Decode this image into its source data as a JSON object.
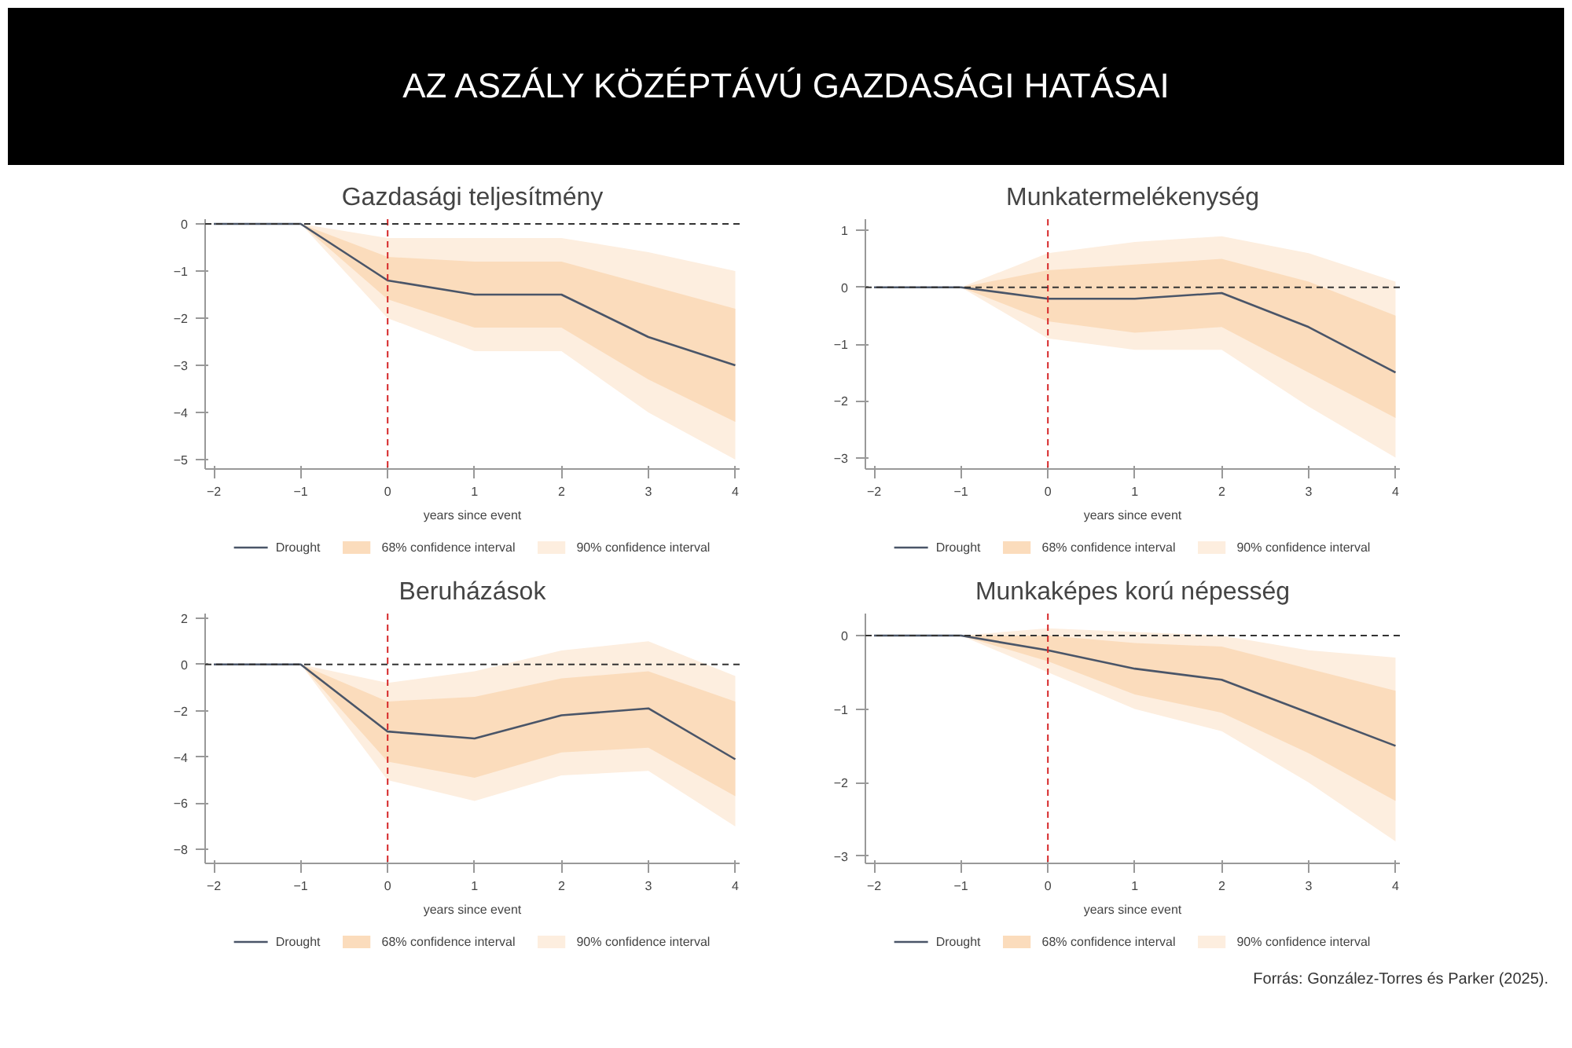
{
  "chart_data": [
    {
      "type": "line",
      "title": "Gazdasági teljesítmény",
      "xlabel": "years since event",
      "annotations": [
        "AZ ASZÁLY KÖZÉPTÁVÚ GAZDASÁGI HATÁSAI"
      ],
      "x": [
        -2,
        -1,
        0,
        1,
        2,
        3,
        4
      ],
      "xlim": [
        -2.1,
        4.05
      ],
      "xticks": [
        -2,
        -1,
        0,
        1,
        2,
        3,
        4
      ],
      "ylim": [
        -5.2,
        0.1
      ],
      "yticks": [
        -5,
        -4,
        -3,
        -2,
        -1,
        0
      ],
      "grid": false,
      "legend": "bottom",
      "series": [
        {
          "name": "Drought",
          "color": "#4a5568",
          "values": [
            0,
            0,
            -1.2,
            -1.5,
            -1.5,
            -2.4,
            -3.0
          ]
        },
        {
          "name": "68% confidence interval",
          "type": "area",
          "color": "#fbdcbc",
          "values": [
            null,
            null,
            null,
            null,
            null,
            null,
            null
          ],
          "lower": [
            0,
            0,
            -1.6,
            -2.2,
            -2.2,
            -3.3,
            -4.2
          ],
          "upper": [
            0,
            0,
            -0.7,
            -0.8,
            -0.8,
            -1.3,
            -1.8
          ]
        },
        {
          "name": "90% confidence interval",
          "type": "area",
          "color": "#fdeedf",
          "values": [
            null,
            null,
            null,
            null,
            null,
            null,
            null
          ],
          "lower": [
            0,
            0,
            -2.0,
            -2.7,
            -2.7,
            -4.0,
            -5.0
          ],
          "upper": [
            0,
            0,
            -0.3,
            -0.3,
            -0.3,
            -0.6,
            -1.0
          ]
        }
      ],
      "ref_lines": [
        {
          "axis": "x",
          "value": 0,
          "color": "#d62728",
          "line_style": "dashed"
        },
        {
          "axis": "y",
          "value": 0,
          "color": "#333333",
          "line_style": "dashed"
        }
      ]
    },
    {
      "type": "line",
      "title": "Munkatermelékenység",
      "xlabel": "years since event",
      "x": [
        -2,
        -1,
        0,
        1,
        2,
        3,
        4
      ],
      "xlim": [
        -2.1,
        4.05
      ],
      "xticks": [
        -2,
        -1,
        0,
        1,
        2,
        3,
        4
      ],
      "ylim": [
        -3.2,
        1.2
      ],
      "yticks": [
        -3,
        -2,
        -1,
        0,
        1
      ],
      "grid": false,
      "legend": "bottom",
      "series": [
        {
          "name": "Drought",
          "color": "#4a5568",
          "values": [
            0,
            0,
            -0.2,
            -0.2,
            -0.1,
            -0.7,
            -1.5
          ]
        },
        {
          "name": "68% confidence interval",
          "type": "area",
          "color": "#fbdcbc",
          "values": [
            null,
            null,
            null,
            null,
            null,
            null,
            null
          ],
          "lower": [
            0,
            0,
            -0.6,
            -0.8,
            -0.7,
            -1.5,
            -2.3
          ],
          "upper": [
            0,
            0,
            0.3,
            0.4,
            0.5,
            0.1,
            -0.5
          ]
        },
        {
          "name": "90% confidence interval",
          "type": "area",
          "color": "#fdeedf",
          "values": [
            null,
            null,
            null,
            null,
            null,
            null,
            null
          ],
          "lower": [
            0,
            0,
            -0.9,
            -1.1,
            -1.1,
            -2.1,
            -3.0
          ],
          "upper": [
            0,
            0,
            0.6,
            0.8,
            0.9,
            0.6,
            0.1
          ]
        }
      ],
      "ref_lines": [
        {
          "axis": "x",
          "value": 0,
          "color": "#d62728",
          "line_style": "dashed"
        },
        {
          "axis": "y",
          "value": 0,
          "color": "#333333",
          "line_style": "dashed"
        }
      ]
    },
    {
      "type": "line",
      "title": "Beruházások",
      "xlabel": "years since event",
      "x": [
        -2,
        -1,
        0,
        1,
        2,
        3,
        4
      ],
      "xlim": [
        -2.1,
        4.05
      ],
      "xticks": [
        -2,
        -1,
        0,
        1,
        2,
        3,
        4
      ],
      "ylim": [
        -8.6,
        2.2
      ],
      "yticks": [
        -8,
        -6,
        -4,
        -2,
        0,
        2
      ],
      "grid": false,
      "legend": "bottom",
      "series": [
        {
          "name": "Drought",
          "color": "#4a5568",
          "values": [
            0,
            0,
            -2.9,
            -3.2,
            -2.2,
            -1.9,
            -4.1
          ]
        },
        {
          "name": "68% confidence interval",
          "type": "area",
          "color": "#fbdcbc",
          "values": [
            null,
            null,
            null,
            null,
            null,
            null,
            null
          ],
          "lower": [
            0,
            0,
            -4.2,
            -4.9,
            -3.8,
            -3.6,
            -5.7
          ],
          "upper": [
            0,
            0,
            -1.6,
            -1.4,
            -0.6,
            -0.3,
            -1.6
          ]
        },
        {
          "name": "90% confidence interval",
          "type": "area",
          "color": "#fdeedf",
          "values": [
            null,
            null,
            null,
            null,
            null,
            null,
            null
          ],
          "lower": [
            0,
            0,
            -5.0,
            -5.9,
            -4.8,
            -4.6,
            -7.0
          ],
          "upper": [
            0,
            0,
            -0.8,
            -0.3,
            0.6,
            1.0,
            -0.5
          ]
        }
      ],
      "ref_lines": [
        {
          "axis": "x",
          "value": 0,
          "color": "#d62728",
          "line_style": "dashed"
        },
        {
          "axis": "y",
          "value": 0,
          "color": "#333333",
          "line_style": "dashed"
        }
      ]
    },
    {
      "type": "line",
      "title": "Munkaképes korú népesség",
      "xlabel": "years since event",
      "annotations": [
        "Forrás: González-Torres  és Parker (2025)."
      ],
      "x": [
        -2,
        -1,
        0,
        1,
        2,
        3,
        4
      ],
      "xlim": [
        -2.1,
        4.05
      ],
      "xticks": [
        -2,
        -1,
        0,
        1,
        2,
        3,
        4
      ],
      "ylim": [
        -3.1,
        0.3
      ],
      "yticks": [
        -3,
        -2,
        -1,
        0
      ],
      "grid": false,
      "legend": "bottom",
      "series": [
        {
          "name": "Drought",
          "color": "#4a5568",
          "values": [
            0,
            0,
            -0.2,
            -0.45,
            -0.6,
            -1.05,
            -1.5
          ]
        },
        {
          "name": "68% confidence interval",
          "type": "area",
          "color": "#fbdcbc",
          "values": [
            null,
            null,
            null,
            null,
            null,
            null,
            null
          ],
          "lower": [
            0,
            0,
            -0.35,
            -0.8,
            -1.05,
            -1.6,
            -2.25
          ],
          "upper": [
            0,
            0,
            0.0,
            -0.1,
            -0.15,
            -0.45,
            -0.75
          ]
        },
        {
          "name": "90% confidence interval",
          "type": "area",
          "color": "#fdeedf",
          "values": [
            null,
            null,
            null,
            null,
            null,
            null,
            null
          ],
          "lower": [
            0,
            0,
            -0.5,
            -1.0,
            -1.3,
            -2.0,
            -2.8
          ],
          "upper": [
            0,
            0,
            0.1,
            0.05,
            0.0,
            -0.2,
            -0.3
          ]
        }
      ],
      "ref_lines": [
        {
          "axis": "x",
          "value": 0,
          "color": "#d62728",
          "line_style": "dashed"
        },
        {
          "axis": "y",
          "value": 0,
          "color": "#333333",
          "line_style": "dashed"
        }
      ]
    }
  ]
}
